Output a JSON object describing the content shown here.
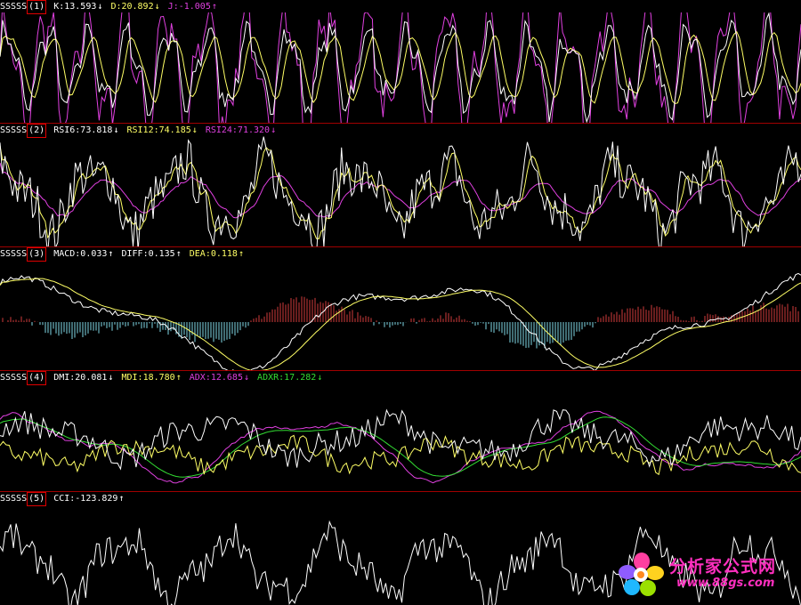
{
  "panels": [
    {
      "name": "SSSSS",
      "index": "(1)",
      "indicators": [
        {
          "label": "K:13.593",
          "arrow": "↓",
          "color": "#ffffff"
        },
        {
          "label": "D:20.892",
          "arrow": "↓",
          "color": "#ffff66"
        },
        {
          "label": "J:-1.005",
          "arrow": "↑",
          "color": "#e040e0"
        }
      ]
    },
    {
      "name": "SSSSS",
      "index": "(2)",
      "indicators": [
        {
          "label": "RSI6:73.818",
          "arrow": "↓",
          "color": "#ffffff"
        },
        {
          "label": "RSI12:74.185",
          "arrow": "↓",
          "color": "#ffff66"
        },
        {
          "label": "RSI24:71.320",
          "arrow": "↓",
          "color": "#e040e0"
        }
      ]
    },
    {
      "name": "SSSSS",
      "index": "(3)",
      "indicators": [
        {
          "label": "MACD:0.033",
          "arrow": "↑",
          "color": "#ffffff"
        },
        {
          "label": "DIFF:0.135",
          "arrow": "↑",
          "color": "#ffffff"
        },
        {
          "label": "DEA:0.118",
          "arrow": "↑",
          "color": "#ffff66"
        }
      ]
    },
    {
      "name": "SSSSS",
      "index": "(4)",
      "indicators": [
        {
          "label": "DMI:20.081",
          "arrow": "↓",
          "color": "#ffffff"
        },
        {
          "label": "MDI:18.780",
          "arrow": "↑",
          "color": "#ffff66"
        },
        {
          "label": "ADX:12.685",
          "arrow": "↓",
          "color": "#e040e0"
        },
        {
          "label": "ADXR:17.282",
          "arrow": "↓",
          "color": "#33dd33"
        }
      ]
    },
    {
      "name": "SSSSS",
      "index": "(5)",
      "indicators": [
        {
          "label": "CCI:-123.829",
          "arrow": "↑",
          "color": "#ffffff"
        }
      ]
    }
  ],
  "watermark": {
    "title": "分析家公式网",
    "url": "www.88gs.com"
  },
  "colors": {
    "background": "#000000",
    "separator": "#a00000",
    "box": "#e00000",
    "white": "#ffffff",
    "yellow": "#ffff66",
    "magenta": "#e040e0",
    "green": "#33dd33",
    "macd_up": "#d23c3c",
    "macd_down": "#7fd9e6"
  }
}
